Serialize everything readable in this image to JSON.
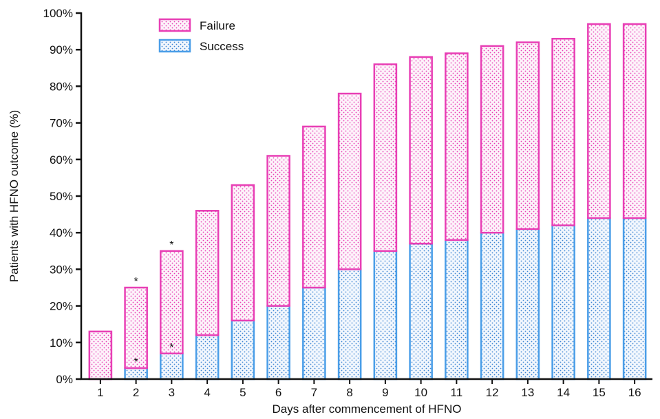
{
  "chart_data": {
    "type": "bar",
    "stacked": true,
    "xlabel": "Days after commencement of HFNO",
    "ylabel": "Patients  with HFNO outcome (%)",
    "ylim": [
      0,
      100
    ],
    "ytick_step": 10,
    "ytick_format": "%",
    "grid": false,
    "legend_position": "top-left",
    "categories": [
      "1",
      "2",
      "3",
      "4",
      "5",
      "6",
      "7",
      "8",
      "9",
      "10",
      "11",
      "12",
      "13",
      "14",
      "15",
      "16"
    ],
    "series": [
      {
        "name": "Success",
        "color": "#4a9ee8",
        "values": [
          0,
          3,
          7,
          12,
          16,
          20,
          25,
          30,
          35,
          37,
          38,
          40,
          41,
          42,
          44,
          44
        ]
      },
      {
        "name": "Failure",
        "color": "#e83fb5",
        "values": [
          13,
          22,
          28,
          34,
          37,
          41,
          44,
          48,
          51,
          51,
          51,
          51,
          51,
          51,
          53,
          53
        ]
      }
    ],
    "annotations": [
      {
        "category": "2",
        "series": "Success",
        "text": "*"
      },
      {
        "category": "2",
        "series": "Failure",
        "text": "*"
      },
      {
        "category": "3",
        "series": "Success",
        "text": "*"
      },
      {
        "category": "3",
        "series": "Failure",
        "text": "*"
      }
    ]
  }
}
